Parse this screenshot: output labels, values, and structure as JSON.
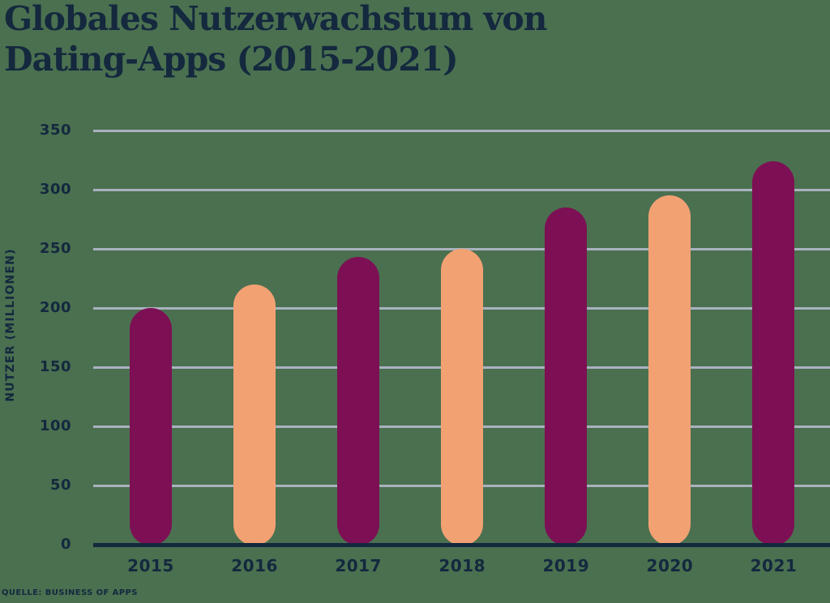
{
  "title": {
    "line1": "Globales Nutzerwachstum von",
    "line2": "Dating-Apps (2015-2021)"
  },
  "y_axis_title": "NUTZER (MILLIONEN)",
  "source": "QUELLE: BUSINESS OF APPS",
  "colors": {
    "background": "#4A7050",
    "text_navy": "#14283E",
    "bar_magenta": "#7D1054",
    "bar_peach": "#F2A173",
    "gridline": "#A9B2BE",
    "axis_line": "#14283E"
  },
  "chart_data": {
    "type": "bar",
    "title": "Globales Nutzerwachstum von Dating-Apps (2015-2021)",
    "xlabel": "",
    "ylabel": "NUTZER (MILLIONEN)",
    "categories": [
      "2015",
      "2016",
      "2017",
      "2018",
      "2019",
      "2020",
      "2021"
    ],
    "values": [
      200,
      220,
      243,
      250,
      285,
      295,
      324
    ],
    "yticks": [
      0,
      50,
      100,
      150,
      200,
      250,
      300,
      350
    ],
    "ylim": [
      0,
      350
    ],
    "grid": true,
    "legend": false,
    "bar_color_pattern": [
      "#7D1054",
      "#F2A173"
    ],
    "source": "QUELLE: BUSINESS OF APPS"
  }
}
